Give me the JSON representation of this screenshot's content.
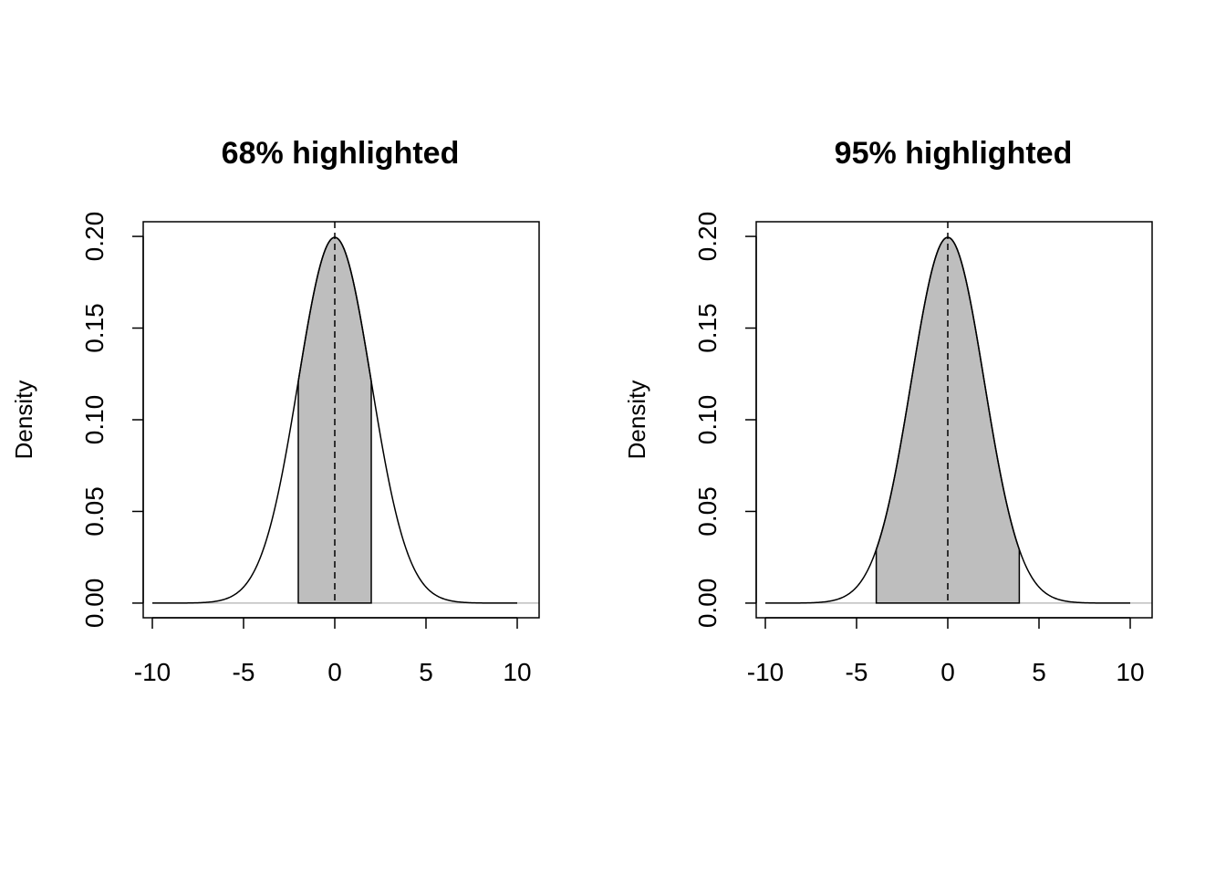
{
  "chart_data": [
    {
      "type": "area",
      "title": "68% highlighted",
      "xlabel": "",
      "ylabel": "Density",
      "xlim": [
        -10.5,
        11.2
      ],
      "ylim": [
        -0.008,
        0.208
      ],
      "x_ticks": [
        -10,
        -5,
        0,
        5,
        10
      ],
      "x_tick_labels": [
        "-10",
        "-5",
        "0",
        "5",
        "10"
      ],
      "y_ticks": [
        0.0,
        0.05,
        0.1,
        0.15,
        0.2
      ],
      "y_tick_labels": [
        "0.00",
        "0.05",
        "0.10",
        "0.15",
        "0.20"
      ],
      "curve": {
        "distribution": "normal",
        "mean": 0,
        "sd": 2,
        "x_range": [
          -10,
          10
        ]
      },
      "highlight": {
        "from": -2,
        "to": 2,
        "fill": "#bebebe"
      },
      "mean_line": {
        "x": 0,
        "style": "dashed"
      },
      "baseline_color": "#bebebe",
      "grid": false
    },
    {
      "type": "area",
      "title": "95% highlighted",
      "xlabel": "",
      "ylabel": "Density",
      "xlim": [
        -10.5,
        11.2
      ],
      "ylim": [
        -0.008,
        0.208
      ],
      "x_ticks": [
        -10,
        -5,
        0,
        5,
        10
      ],
      "x_tick_labels": [
        "-10",
        "-5",
        "0",
        "5",
        "10"
      ],
      "y_ticks": [
        0.0,
        0.05,
        0.1,
        0.15,
        0.2
      ],
      "y_tick_labels": [
        "0.00",
        "0.05",
        "0.10",
        "0.15",
        "0.20"
      ],
      "curve": {
        "distribution": "normal",
        "mean": 0,
        "sd": 2,
        "x_range": [
          -10,
          10
        ]
      },
      "highlight": {
        "from": -3.92,
        "to": 3.92,
        "fill": "#bebebe"
      },
      "mean_line": {
        "x": 0,
        "style": "dashed"
      },
      "baseline_color": "#bebebe",
      "grid": false
    }
  ]
}
